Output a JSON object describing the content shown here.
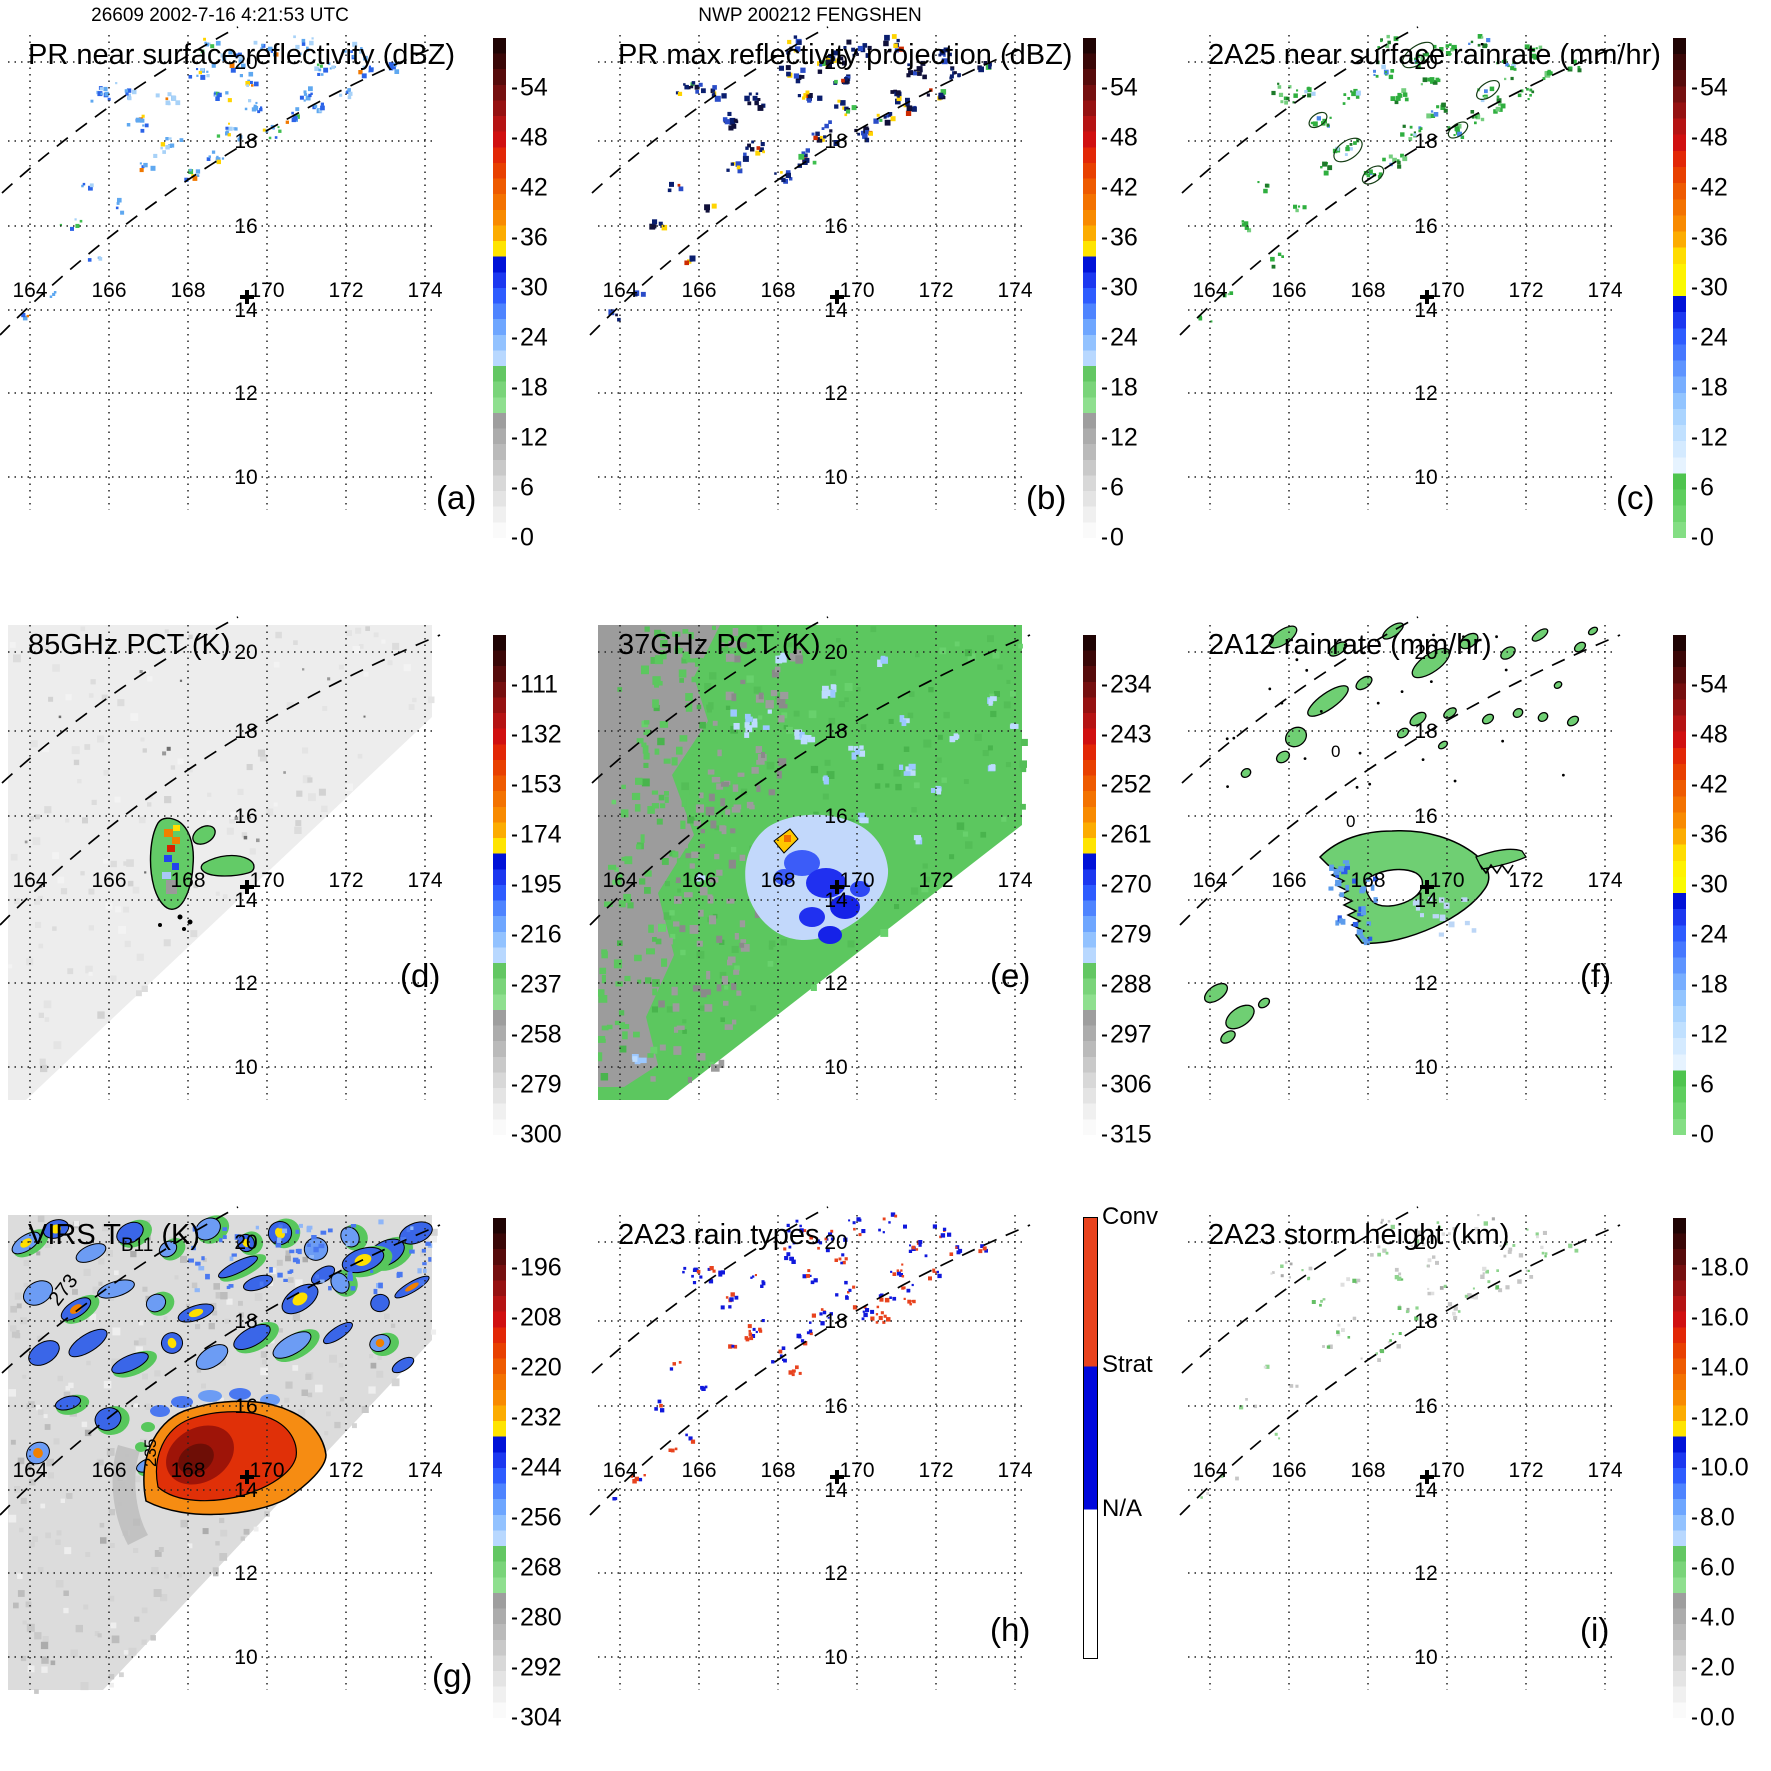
{
  "figure": {
    "orbit_header": "26609 2002-7-16 4:21:53 UTC",
    "storm_header": "NWP 200212 FENGSHEN"
  },
  "map": {
    "lon_labels": [
      "164",
      "166",
      "168",
      "170",
      "172",
      "174"
    ],
    "lat_labels": [
      "20",
      "18",
      "16",
      "14",
      "12",
      "10"
    ],
    "center_marker": "+"
  },
  "contour_labels": {
    "g_outer": "273",
    "g_inner": "235",
    "f_zero_1": "0",
    "f_zero_2": "0"
  },
  "panels": {
    "a": {
      "letter": "(a)",
      "suptitle": "26609 2002-7-16 4:21:53 UTC",
      "title": "PR near surface reflectivity (dBZ)",
      "colorbar": {
        "palette": "A",
        "ticks": [
          "54",
          "48",
          "42",
          "36",
          "30",
          "24",
          "18",
          "12",
          "6",
          "0"
        ]
      }
    },
    "b": {
      "letter": "(b)",
      "suptitle": "NWP 200212 FENGSHEN",
      "title": "PR max reflectivity projection (dBZ)",
      "colorbar": {
        "palette": "A",
        "ticks": [
          "54",
          "48",
          "42",
          "36",
          "30",
          "24",
          "18",
          "12",
          "6",
          "0"
        ]
      }
    },
    "c": {
      "letter": "(c)",
      "suptitle": "",
      "title": "2A25 near surface rainrate (mm/hr)",
      "colorbar": {
        "palette": "C",
        "ticks": [
          "54",
          "48",
          "42",
          "36",
          "30",
          "24",
          "18",
          "12",
          "6",
          "0"
        ]
      }
    },
    "d": {
      "letter": "(d)",
      "suptitle": "",
      "title": "85GHz PCT (K)",
      "colorbar": {
        "palette": "A",
        "ticks": [
          "111",
          "132",
          "153",
          "174",
          "195",
          "216",
          "237",
          "258",
          "279",
          "300"
        ]
      }
    },
    "e": {
      "letter": "(e)",
      "suptitle": "",
      "title": "37GHz PCT (K)",
      "colorbar": {
        "palette": "A",
        "ticks": [
          "234",
          "243",
          "252",
          "261",
          "270",
          "279",
          "288",
          "297",
          "306",
          "315"
        ]
      }
    },
    "f": {
      "letter": "(f)",
      "suptitle": "",
      "title": "2A12 rainrate (mm/hr)",
      "colorbar": {
        "palette": "C",
        "ticks": [
          "54",
          "48",
          "42",
          "36",
          "30",
          "24",
          "18",
          "12",
          "6",
          "0"
        ]
      }
    },
    "g": {
      "letter": "(g)",
      "suptitle": "",
      "title": "VIRS T",
      "title_sub": "B11",
      "title_post": " (K)",
      "colorbar": {
        "palette": "A",
        "ticks": [
          "196",
          "208",
          "220",
          "232",
          "244",
          "256",
          "268",
          "280",
          "292",
          "304"
        ]
      }
    },
    "h": {
      "letter": "(h)",
      "suptitle": "",
      "title": "2A23 rain types",
      "colorbar": {
        "palette": "H",
        "labels": [
          "Conv",
          "Strat",
          "N/A"
        ]
      }
    },
    "i": {
      "letter": "(i)",
      "suptitle": "",
      "title": "2A23 storm height (km)",
      "colorbar": {
        "palette": "A",
        "ticks": [
          "18.0",
          "16.0",
          "14.0",
          "12.0",
          "10.0",
          "8.0",
          "6.0",
          "4.0",
          "2.0",
          "0.0"
        ]
      }
    }
  },
  "colors": {
    "conv": "#E8431E",
    "strat": "#0008DC",
    "na": "#FFFFFF",
    "palettes": {
      "A": [
        "#1F0404",
        "#3A0707",
        "#560B0B",
        "#750F0F",
        "#951111",
        "#B51313",
        "#D01010",
        "#E22706",
        "#E84000",
        "#EE5A00",
        "#F37200",
        "#F88A00",
        "#FCAC00",
        "#FFE400",
        "#0012D8",
        "#1C38F0",
        "#2E5CFF",
        "#4E84FF",
        "#6EA6FF",
        "#92C2FF",
        "#B8D8FF",
        "#63C763",
        "#7AD47A",
        "#8FDF8F",
        "#9E9E9E",
        "#ACACAC",
        "#BABABA",
        "#C9C9C9",
        "#D8D8D8",
        "#E4E4E4",
        "#F0F0F0",
        "#FAFAFA"
      ],
      "C": [
        "#1F0404",
        "#3A0707",
        "#560B0B",
        "#750F0F",
        "#951111",
        "#B51313",
        "#D01010",
        "#E22706",
        "#E84000",
        "#EE5A00",
        "#F37200",
        "#F88A00",
        "#FCAC00",
        "#FFDC00",
        "#FFF200",
        "#FAFA00",
        "#0012D8",
        "#1C38F0",
        "#2E5CFF",
        "#4678FF",
        "#5E94FF",
        "#78AEFF",
        "#92C4FF",
        "#AAD4FF",
        "#C0E0FF",
        "#D4EAFF",
        "#E6F3FF",
        "#4EC44E",
        "#5ECE5E",
        "#70D670",
        "#84DE84"
      ],
      "H": [
        [
          "#E8431E",
          33.7
        ],
        [
          "#0008DC",
          32.6
        ],
        [
          "#FFFFFF",
          33.7
        ]
      ]
    }
  },
  "chart_data": [
    {
      "panel": "a",
      "type": "map",
      "title": "PR near surface reflectivity (dBZ)",
      "suptitle": "26609 2002-7-16 4:21:53 UTC",
      "colorbar_ticks": [
        54,
        48,
        42,
        36,
        30,
        24,
        18,
        12,
        6,
        0
      ],
      "lon_ticks": [
        164,
        166,
        168,
        170,
        172,
        174
      ],
      "lat_ticks": [
        20,
        18,
        16,
        14,
        12,
        10
      ],
      "marker": {
        "lon": 169.4,
        "lat": 14.4
      },
      "content": "scattered light-blue/green/yellow rain echoes inside dashed PR swath band, upper-left of domain"
    },
    {
      "panel": "b",
      "type": "map",
      "title": "PR max reflectivity projection (dBZ)",
      "suptitle": "NWP 200212 FENGSHEN",
      "colorbar_ticks": [
        54,
        48,
        42,
        36,
        30,
        24,
        18,
        12,
        6,
        0
      ],
      "lon_ticks": [
        164,
        166,
        168,
        170,
        172,
        174
      ],
      "lat_ticks": [
        20,
        18,
        16,
        14,
        12,
        10
      ],
      "marker": {
        "lon": 169.4,
        "lat": 14.4
      },
      "content": "dark navy echo cells with yellow cores along dashed PR swath band"
    },
    {
      "panel": "c",
      "type": "map",
      "title": "2A25 near surface rainrate (mm/hr)",
      "colorbar_ticks": [
        54,
        48,
        42,
        36,
        30,
        24,
        18,
        12,
        6,
        0
      ],
      "lon_ticks": [
        164,
        166,
        168,
        170,
        172,
        174
      ],
      "lat_ticks": [
        20,
        18,
        16,
        14,
        12,
        10
      ],
      "marker": {
        "lon": 169.4,
        "lat": 14.4
      },
      "content": "small green-outlined rain cells along dashed PR swath band"
    },
    {
      "panel": "d",
      "type": "map",
      "title": "85GHz PCT (K)",
      "colorbar_ticks": [
        111,
        132,
        153,
        174,
        195,
        216,
        237,
        258,
        279,
        300
      ],
      "lon_ticks": [
        164,
        166,
        168,
        170,
        172,
        174
      ],
      "lat_ticks": [
        20,
        18,
        16,
        14,
        12,
        10
      ],
      "marker": {
        "lon": 169.4,
        "lat": 14.4
      },
      "content": "light-gray TMI swath (no data lower-right triangle); convective blob near 168E 15N with green/blue/orange/red pixels"
    },
    {
      "panel": "e",
      "type": "map",
      "title": "37GHz PCT (K)",
      "colorbar_ticks": [
        234,
        243,
        252,
        261,
        270,
        279,
        288,
        297,
        306,
        315
      ],
      "lon_ticks": [
        164,
        166,
        168,
        170,
        172,
        174
      ],
      "lat_ticks": [
        20,
        18,
        16,
        14,
        12,
        10
      ],
      "marker": {
        "lon": 169.4,
        "lat": 14.4
      },
      "content": "green swath with gray zone on west side; blue storm blob near 168-170E 14-16N with small yellow-orange core"
    },
    {
      "panel": "f",
      "type": "map",
      "title": "2A12 rainrate (mm/hr)",
      "colorbar_ticks": [
        54,
        48,
        42,
        36,
        30,
        24,
        18,
        12,
        6,
        0
      ],
      "lon_ticks": [
        164,
        166,
        168,
        170,
        172,
        174
      ],
      "lat_ticks": [
        20,
        18,
        16,
        14,
        12,
        10
      ],
      "marker": {
        "lon": 169.4,
        "lat": 14.4
      },
      "content": "black-outlined green rain areas; large curved rain shield near 168-170E 14-16N with blue speckles and clear eye; contour labels 0"
    },
    {
      "panel": "g",
      "type": "map",
      "title": "VIRS TB11 (K)",
      "colorbar_ticks": [
        196,
        208,
        220,
        232,
        244,
        256,
        268,
        280,
        292,
        304
      ],
      "lon_ticks": [
        164,
        166,
        168,
        170,
        172,
        174
      ],
      "lat_ticks": [
        20,
        18,
        16,
        14,
        12,
        10
      ],
      "marker": {
        "lon": 169.4,
        "lat": 14.4
      },
      "content": "gray IR field with many contoured blue/yellow cold cloud clusters; large orange-red cold CDO near 168-170E 14-15.5N; contour labels 273 and 235"
    },
    {
      "panel": "h",
      "type": "map",
      "title": "2A23 rain types",
      "colorbar_labels": [
        "Conv",
        "Strat",
        "N/A"
      ],
      "lon_ticks": [
        164,
        166,
        168,
        170,
        172,
        174
      ],
      "lat_ticks": [
        20,
        18,
        16,
        14,
        12,
        10
      ],
      "marker": {
        "lon": 169.4,
        "lat": 14.4
      },
      "content": "blue stratiform and orange-red convective pixels along dashed PR swath band"
    },
    {
      "panel": "i",
      "type": "map",
      "title": "2A23 storm height (km)",
      "colorbar_ticks": [
        18,
        16,
        14,
        12,
        10,
        8,
        6,
        4,
        2,
        0
      ],
      "lon_ticks": [
        164,
        166,
        168,
        170,
        172,
        174
      ],
      "lat_ticks": [
        20,
        18,
        16,
        14,
        12,
        10
      ],
      "marker": {
        "lon": 169.4,
        "lat": 14.4
      },
      "content": "pale gray and green storm-height pixels along dashed PR swath band"
    }
  ]
}
